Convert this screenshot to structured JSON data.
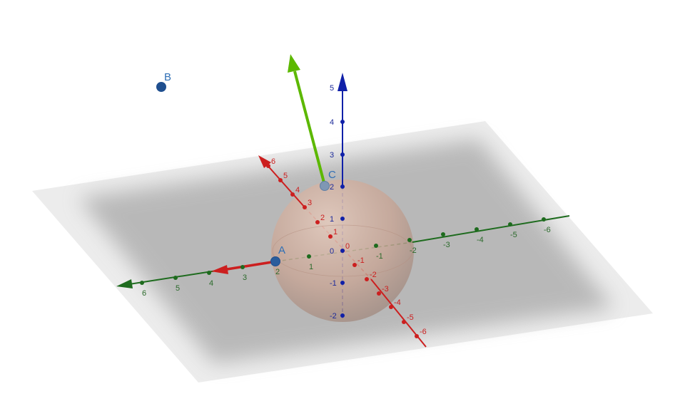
{
  "scene": {
    "colors": {
      "x_axis": "#cc1f1f",
      "y_axis": "#1e6b1e",
      "z_axis": "#1020a8",
      "x_label": "#cc1f1f",
      "y_label": "#2b6a2b",
      "z_label": "#1c2a9a",
      "sphere": "#c9a493",
      "vector": "#5cb800",
      "point": "#1f4f8f",
      "point_label": "#2f6fb5",
      "plane": "#9b9b9b"
    },
    "axes": {
      "x": {
        "ticks": [
          "6",
          "5",
          "4",
          "3",
          "2",
          "1",
          "0",
          "-1",
          "-2",
          "-3",
          "-4",
          "-5",
          "-6"
        ]
      },
      "y": {
        "ticks": [
          "6",
          "5",
          "4",
          "3",
          "2",
          "1",
          "-1",
          "-2",
          "-3",
          "-4",
          "-5",
          "-6"
        ]
      },
      "z": {
        "ticks": [
          "5",
          "4",
          "3",
          "2",
          "1",
          "0",
          "-1",
          "-2"
        ]
      }
    },
    "sphere": {
      "center": [
        0,
        0,
        0
      ],
      "radius": 2
    },
    "points": [
      {
        "name": "A",
        "label": "A",
        "coords": [
          0,
          2,
          0
        ]
      },
      {
        "name": "B",
        "label": "B"
      },
      {
        "name": "C",
        "label": "C",
        "coords": [
          0,
          0,
          2
        ]
      }
    ],
    "vector": {
      "from": "C",
      "to_direction": "up"
    }
  }
}
